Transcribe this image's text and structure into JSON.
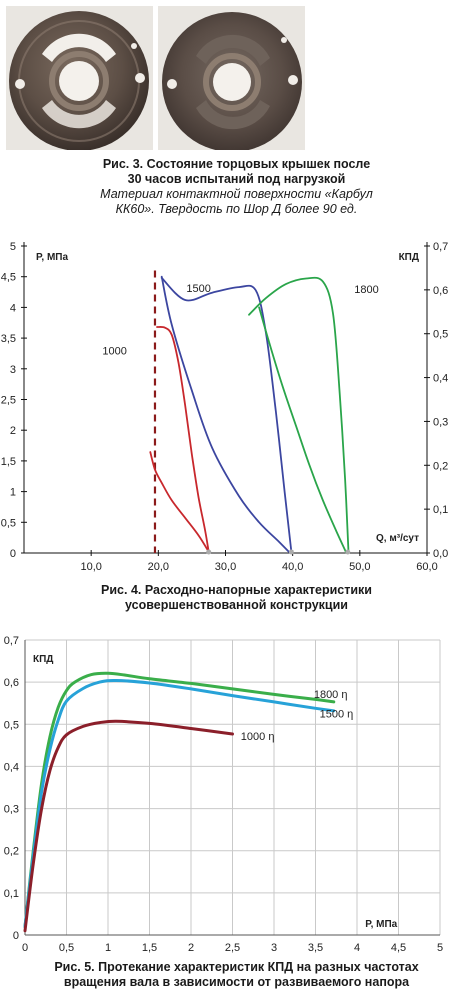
{
  "figure3": {
    "caption_line1": "Рис. 3. Состояние торцовых крышек после",
    "caption_line2": "30 часов испытаний под нагрузкой",
    "caption_line3": "Материал контактной поверхности «Карбул",
    "caption_line4": "КК60». Твердость по Шор Д более 90 ед."
  },
  "figure4": {
    "caption_line1": "Рис. 4. Расходно-напорные характеристики",
    "caption_line2": "усовершенствованной конструкции"
  },
  "figure5": {
    "caption_line1": "Рис. 5. Протекание характеристик КПД на разных частотах",
    "caption_line2": "вращения вала в зависимости от развиваемого напора"
  },
  "chart_data": [
    {
      "type": "line",
      "ylabel": "P, МПа",
      "y2label": "КПД",
      "xlabel": "Q, м³/сут",
      "xlim": [
        0,
        60
      ],
      "ylim": [
        0,
        5
      ],
      "y2lim": [
        0,
        0.7
      ],
      "x_ticks": [
        "10,0",
        "20,0",
        "30,0",
        "40,0",
        "50,0",
        "60,0"
      ],
      "y_ticks": [
        "0",
        "0,5",
        "1",
        "1,5",
        "2",
        "2,5",
        "3",
        "3,5",
        "4",
        "4,5",
        "5"
      ],
      "y2_ticks": [
        "0,0",
        "0,1",
        "0,2",
        "0,3",
        "0,4",
        "0,5",
        "0,6",
        "0,7"
      ],
      "grid": false,
      "reference_line": {
        "x": 19.5,
        "style": "dashed",
        "color": "#8b1a1a"
      },
      "series": [
        {
          "name": "1000",
          "color": "#c8282d",
          "kind": "pressure",
          "points": [
            [
              19.8,
              3.68
            ],
            [
              21.0,
              3.67
            ],
            [
              22.0,
              3.55
            ],
            [
              23.0,
              3.1
            ],
            [
              24.0,
              2.4
            ],
            [
              25.0,
              1.6
            ],
            [
              26.0,
              0.9
            ],
            [
              27.0,
              0.35
            ],
            [
              27.5,
              0.02
            ]
          ]
        },
        {
          "name": "1000",
          "color": "#c8282d",
          "kind": "efficiency",
          "points": [
            [
              18.8,
              0.23
            ],
            [
              19.5,
              0.19
            ],
            [
              20.5,
              0.16
            ],
            [
              22.0,
              0.12
            ],
            [
              24.0,
              0.08
            ],
            [
              26.0,
              0.04
            ],
            [
              27.6,
              0.0
            ]
          ]
        },
        {
          "name": "1500",
          "color": "#3c46a0",
          "kind": "pressure",
          "points": [
            [
              20.5,
              4.48
            ],
            [
              24.0,
              4.12
            ],
            [
              28.0,
              4.24
            ],
            [
              32.0,
              4.33
            ],
            [
              34.5,
              4.28
            ],
            [
              36.0,
              3.6
            ],
            [
              37.5,
              2.3
            ],
            [
              38.8,
              1.0
            ],
            [
              39.8,
              0.03
            ]
          ]
        },
        {
          "name": "1500",
          "color": "#3c46a0",
          "kind": "efficiency",
          "points": [
            [
              20.5,
              0.63
            ],
            [
              22.0,
              0.52
            ],
            [
              25.0,
              0.37
            ],
            [
              28.0,
              0.24
            ],
            [
              32.0,
              0.13
            ],
            [
              35.0,
              0.07
            ],
            [
              38.0,
              0.025
            ],
            [
              39.6,
              0.0
            ]
          ]
        },
        {
          "name": "1800",
          "color": "#2aa54a",
          "kind": "pressure",
          "points": [
            [
              33.5,
              3.88
            ],
            [
              36.0,
              4.15
            ],
            [
              39.0,
              4.38
            ],
            [
              42.0,
              4.47
            ],
            [
              44.5,
              4.42
            ],
            [
              46.0,
              3.9
            ],
            [
              47.0,
              2.6
            ],
            [
              47.8,
              1.2
            ],
            [
              48.3,
              0.05
            ]
          ]
        },
        {
          "name": "1800",
          "color": "#2aa54a",
          "kind": "efficiency",
          "points": [
            [
              35.0,
              0.56
            ],
            [
              36.5,
              0.48
            ],
            [
              38.5,
              0.38
            ],
            [
              40.5,
              0.29
            ],
            [
              42.5,
              0.2
            ],
            [
              44.5,
              0.12
            ],
            [
              46.5,
              0.05
            ],
            [
              48.0,
              0.0
            ]
          ]
        }
      ]
    },
    {
      "type": "line",
      "ylabel": "КПД",
      "xlabel": "Р, МПа",
      "xlim": [
        0,
        5
      ],
      "ylim": [
        0,
        0.7
      ],
      "x_ticks": [
        "0",
        "0,5",
        "1",
        "1,5",
        "2",
        "2,5",
        "3",
        "3,5",
        "4",
        "4,5",
        "5"
      ],
      "y_ticks": [
        "0",
        "0,1",
        "0,2",
        "0,3",
        "0,4",
        "0,5",
        "0,6",
        "0,7"
      ],
      "grid": true,
      "series": [
        {
          "name": "1800 η",
          "color": "#3aae4a",
          "points": [
            [
              0.0,
              0.02
            ],
            [
              0.1,
              0.2
            ],
            [
              0.2,
              0.36
            ],
            [
              0.3,
              0.47
            ],
            [
              0.4,
              0.54
            ],
            [
              0.5,
              0.58
            ],
            [
              0.6,
              0.6
            ],
            [
              0.8,
              0.618
            ],
            [
              1.0,
              0.621
            ],
            [
              1.2,
              0.617
            ],
            [
              1.5,
              0.608
            ],
            [
              2.0,
              0.597
            ],
            [
              2.5,
              0.584
            ],
            [
              3.0,
              0.571
            ],
            [
              3.5,
              0.559
            ],
            [
              3.72,
              0.553
            ]
          ]
        },
        {
          "name": "1500 η",
          "color": "#27a2d8",
          "points": [
            [
              0.0,
              0.02
            ],
            [
              0.1,
              0.19
            ],
            [
              0.2,
              0.34
            ],
            [
              0.3,
              0.44
            ],
            [
              0.4,
              0.51
            ],
            [
              0.5,
              0.555
            ],
            [
              0.7,
              0.585
            ],
            [
              0.9,
              0.6
            ],
            [
              1.1,
              0.604
            ],
            [
              1.5,
              0.598
            ],
            [
              2.0,
              0.584
            ],
            [
              2.5,
              0.568
            ],
            [
              3.0,
              0.553
            ],
            [
              3.5,
              0.538
            ],
            [
              3.72,
              0.532
            ]
          ]
        },
        {
          "name": "1000 η",
          "color": "#8b1f2a",
          "points": [
            [
              0.0,
              0.01
            ],
            [
              0.1,
              0.17
            ],
            [
              0.2,
              0.3
            ],
            [
              0.3,
              0.39
            ],
            [
              0.4,
              0.445
            ],
            [
              0.5,
              0.475
            ],
            [
              0.7,
              0.495
            ],
            [
              0.9,
              0.504
            ],
            [
              1.1,
              0.507
            ],
            [
              1.5,
              0.502
            ],
            [
              2.0,
              0.49
            ],
            [
              2.5,
              0.477
            ]
          ]
        }
      ]
    }
  ]
}
